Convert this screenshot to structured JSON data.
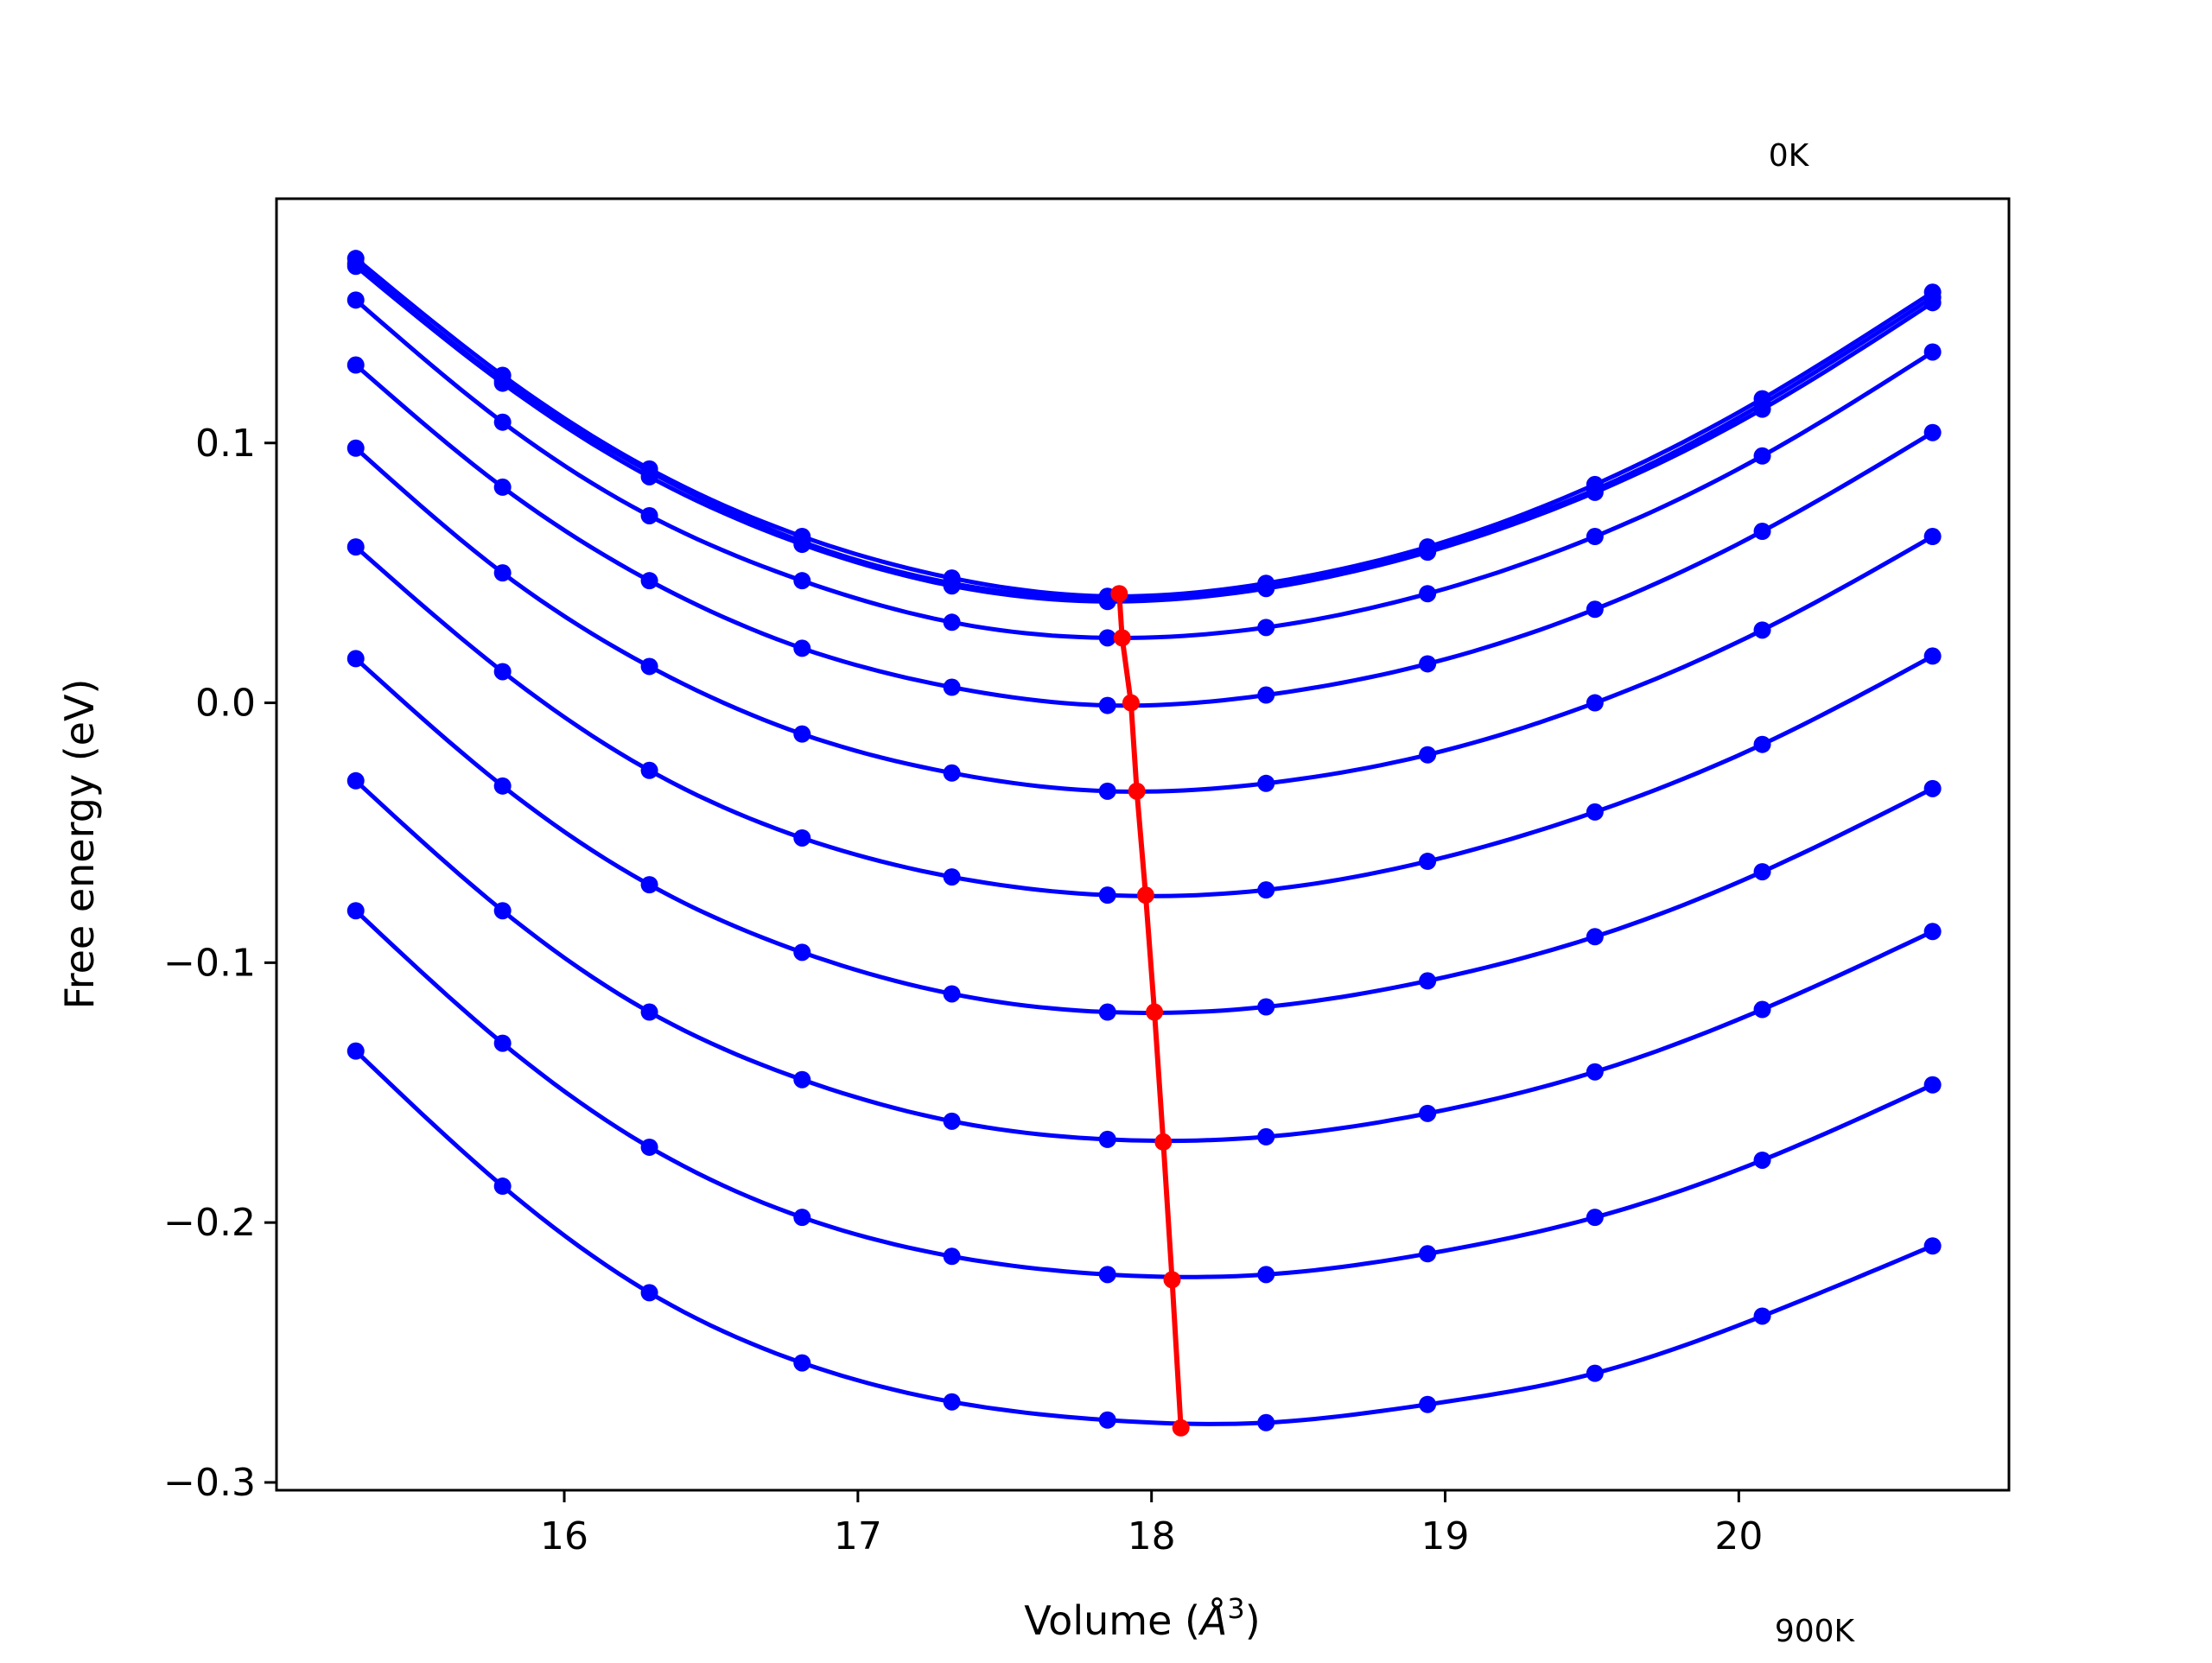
{
  "chart_data": {
    "type": "line",
    "xlabel_prefix": "Volume (",
    "xlabel_unit": "Å",
    "xlabel_exponent": "3",
    "xlabel_suffix": ")",
    "ylabel": "Free energy (eV)",
    "xlim": [
      15.02,
      20.92
    ],
    "ylim": [
      -0.303,
      0.194
    ],
    "xticks": [
      16,
      17,
      18,
      19,
      20
    ],
    "xtick_labels": [
      "16",
      "17",
      "18",
      "19",
      "20"
    ],
    "yticks": [
      -0.3,
      -0.2,
      -0.1,
      0.0,
      0.1
    ],
    "ytick_labels": [
      "−0.3",
      "−0.2",
      "−0.1",
      "0.0",
      "0.1"
    ],
    "grid": false,
    "legend": false,
    "annotations": [
      {
        "text": "0K"
      },
      {
        "text": "900K"
      }
    ],
    "x": [
      15.29,
      15.79,
      16.29,
      16.81,
      17.32,
      17.85,
      18.39,
      18.94,
      19.51,
      20.08,
      20.66
    ],
    "series": [
      {
        "values": [
          0.171,
          0.126,
          0.09,
          0.064,
          0.048,
          0.041,
          0.046,
          0.06,
          0.084,
          0.117,
          0.158
        ]
      },
      {
        "values": [
          0.169,
          0.124,
          0.089,
          0.062,
          0.046,
          0.04,
          0.045,
          0.059,
          0.082,
          0.115,
          0.156
        ]
      },
      {
        "values": [
          0.168,
          0.123,
          0.087,
          0.061,
          0.045,
          0.039,
          0.044,
          0.058,
          0.081,
          0.113,
          0.154
        ]
      },
      {
        "values": [
          0.155,
          0.108,
          0.072,
          0.047,
          0.031,
          0.025,
          0.029,
          0.042,
          0.064,
          0.095,
          0.135
        ]
      },
      {
        "values": [
          0.13,
          0.083,
          0.047,
          0.021,
          0.006,
          -0.001,
          0.003,
          0.015,
          0.036,
          0.066,
          0.104
        ]
      },
      {
        "values": [
          0.098,
          0.05,
          0.014,
          -0.012,
          -0.027,
          -0.034,
          -0.031,
          -0.02,
          0.0,
          0.028,
          0.064
        ]
      },
      {
        "values": [
          0.06,
          0.012,
          -0.026,
          -0.052,
          -0.067,
          -0.074,
          -0.072,
          -0.061,
          -0.042,
          -0.016,
          0.018
        ]
      },
      {
        "values": [
          0.017,
          -0.032,
          -0.07,
          -0.096,
          -0.112,
          -0.119,
          -0.117,
          -0.107,
          -0.09,
          -0.065,
          -0.033
        ]
      },
      {
        "values": [
          -0.03,
          -0.08,
          -0.119,
          -0.145,
          -0.161,
          -0.168,
          -0.167,
          -0.158,
          -0.142,
          -0.118,
          -0.088
        ]
      },
      {
        "values": [
          -0.08,
          -0.131,
          -0.171,
          -0.198,
          -0.213,
          -0.22,
          -0.22,
          -0.212,
          -0.198,
          -0.176,
          -0.147
        ]
      },
      {
        "values": [
          -0.134,
          -0.186,
          -0.227,
          -0.254,
          -0.269,
          -0.276,
          -0.277,
          -0.27,
          -0.258,
          -0.236,
          -0.209
        ]
      }
    ],
    "minima": {
      "x": [
        17.89,
        17.9,
        17.93,
        17.95,
        17.98,
        18.01,
        18.04,
        18.07,
        18.1
      ],
      "y": [
        0.042,
        0.025,
        0.0,
        -0.034,
        -0.074,
        -0.119,
        -0.169,
        -0.222,
        -0.279
      ]
    },
    "colors": {
      "series": "#0000ff",
      "minima": "#ff0000",
      "axes": "#000000"
    }
  }
}
